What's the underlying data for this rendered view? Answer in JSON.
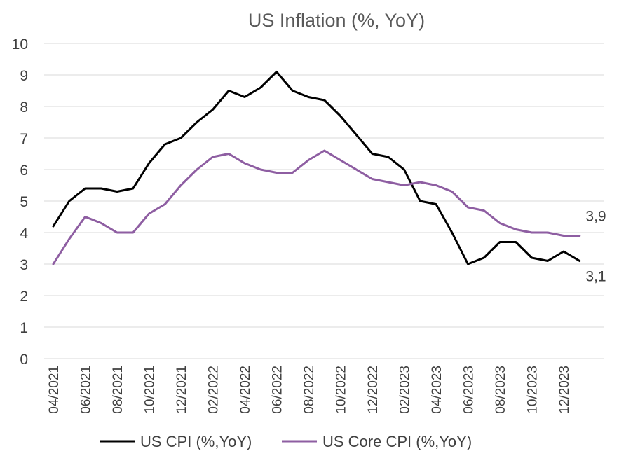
{
  "chart_data": {
    "type": "line",
    "title": "US Inflation (%, YoY)",
    "xlabel": "",
    "ylabel": "",
    "ylim": [
      0,
      10
    ],
    "yticks": [
      0,
      1,
      2,
      3,
      4,
      5,
      6,
      7,
      8,
      9,
      10
    ],
    "grid": true,
    "legend_position": "bottom",
    "x": [
      "04/2021",
      "05/2021",
      "06/2021",
      "07/2021",
      "08/2021",
      "09/2021",
      "10/2021",
      "11/2021",
      "12/2021",
      "01/2022",
      "02/2022",
      "03/2022",
      "04/2022",
      "05/2022",
      "06/2022",
      "07/2022",
      "08/2022",
      "09/2022",
      "10/2022",
      "11/2022",
      "12/2022",
      "01/2023",
      "02/2023",
      "03/2023",
      "04/2023",
      "05/2023",
      "06/2023",
      "07/2023",
      "08/2023",
      "09/2023",
      "10/2023",
      "11/2023",
      "12/2023",
      "01/2024"
    ],
    "x_tick_labels": [
      "04/2021",
      "06/2021",
      "08/2021",
      "10/2021",
      "12/2021",
      "02/2022",
      "04/2022",
      "06/2022",
      "08/2022",
      "10/2022",
      "12/2022",
      "02/2023",
      "04/2023",
      "06/2023",
      "08/2023",
      "10/2023",
      "12/2023"
    ],
    "series": [
      {
        "name": "US CPI (%,YoY)",
        "color": "#000000",
        "values": [
          4.2,
          5.0,
          5.4,
          5.4,
          5.3,
          5.4,
          6.2,
          6.8,
          7.0,
          7.5,
          7.9,
          8.5,
          8.3,
          8.6,
          9.1,
          8.5,
          8.3,
          8.2,
          7.7,
          7.1,
          6.5,
          6.4,
          6.0,
          5.0,
          4.9,
          4.0,
          3.0,
          3.2,
          3.7,
          3.7,
          3.2,
          3.1,
          3.4,
          3.1
        ],
        "end_label": "3,1"
      },
      {
        "name": "US Core CPI (%,YoY)",
        "color": "#8e5ea2",
        "values": [
          3.0,
          3.8,
          4.5,
          4.3,
          4.0,
          4.0,
          4.6,
          4.9,
          5.5,
          6.0,
          6.4,
          6.5,
          6.2,
          6.0,
          5.9,
          5.9,
          6.3,
          6.6,
          6.3,
          6.0,
          5.7,
          5.6,
          5.5,
          5.6,
          5.5,
          5.3,
          4.8,
          4.7,
          4.3,
          4.1,
          4.0,
          4.0,
          3.9,
          3.9
        ],
        "end_label": "3,9"
      }
    ]
  }
}
